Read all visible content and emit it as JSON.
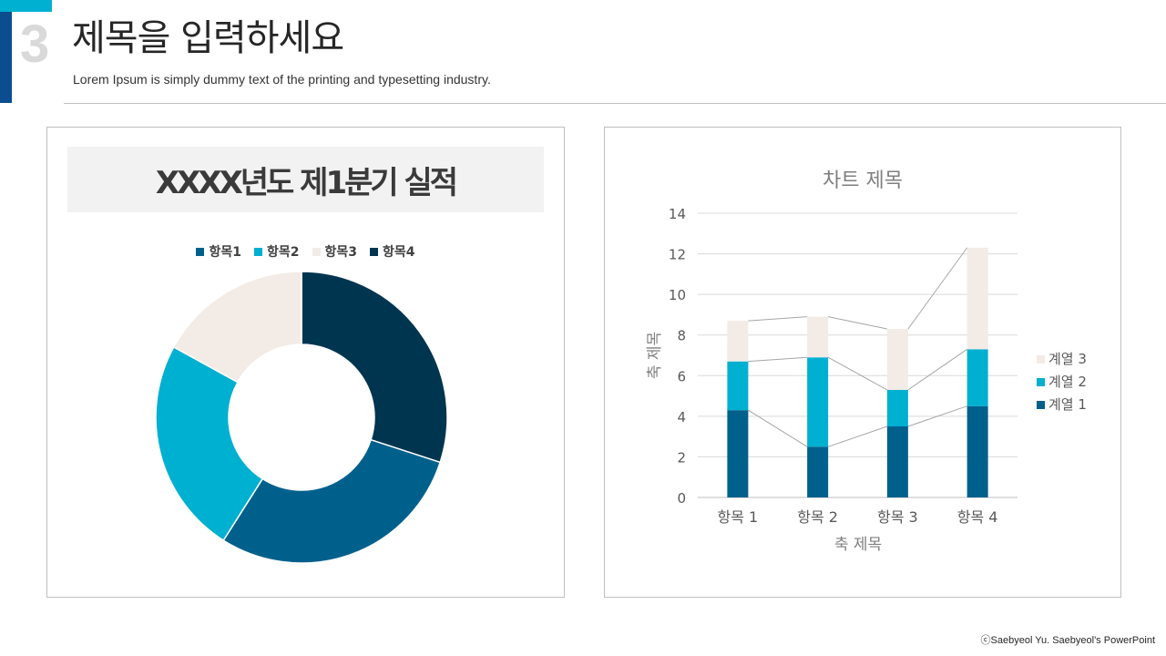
{
  "header": {
    "slide_number": "3",
    "title": "제목을 입력하세요",
    "subtitle": "Lorem Ipsum is simply dummy text of the printing and typesetting industry."
  },
  "colors": {
    "accent_cyan": "#00b0d0",
    "accent_blue": "#0b4d8f",
    "series_dark_blue": "#00608c",
    "series_cyan": "#00b0d0",
    "series_beige": "#f2ebe6",
    "series_navy": "#003550"
  },
  "chart_data": [
    {
      "type": "pie",
      "variant": "donut",
      "title": "XXXX년도 제1분기 실적",
      "legend_position": "top",
      "categories": [
        "항목1",
        "항목2",
        "항목3",
        "항목4"
      ],
      "values": [
        29,
        24,
        17,
        30
      ],
      "colors": [
        "#00608c",
        "#00b0d0",
        "#f2ebe6",
        "#003550"
      ]
    },
    {
      "type": "bar",
      "variant": "stacked",
      "title": "차트 제목",
      "xlabel": "축 제목",
      "ylabel": "축 제목",
      "ylim": [
        0,
        14
      ],
      "yticks": [
        0,
        2,
        4,
        6,
        8,
        10,
        12,
        14
      ],
      "grid": true,
      "series_lines": true,
      "legend_position": "right",
      "categories": [
        "항목 1",
        "항목 2",
        "항목 3",
        "항목 4"
      ],
      "series": [
        {
          "name": "계열 1",
          "values": [
            4.3,
            2.5,
            3.5,
            4.5
          ],
          "color": "#00608c"
        },
        {
          "name": "계열 2",
          "values": [
            2.4,
            4.4,
            1.8,
            2.8
          ],
          "color": "#00b0d0"
        },
        {
          "name": "계열 3",
          "values": [
            2.0,
            2.0,
            3.0,
            5.0
          ],
          "color": "#f2ebe6"
        }
      ]
    }
  ],
  "footer": {
    "copyright": "ⓒSaebyeol Yu.  Saebyeol's PowerPoint"
  }
}
